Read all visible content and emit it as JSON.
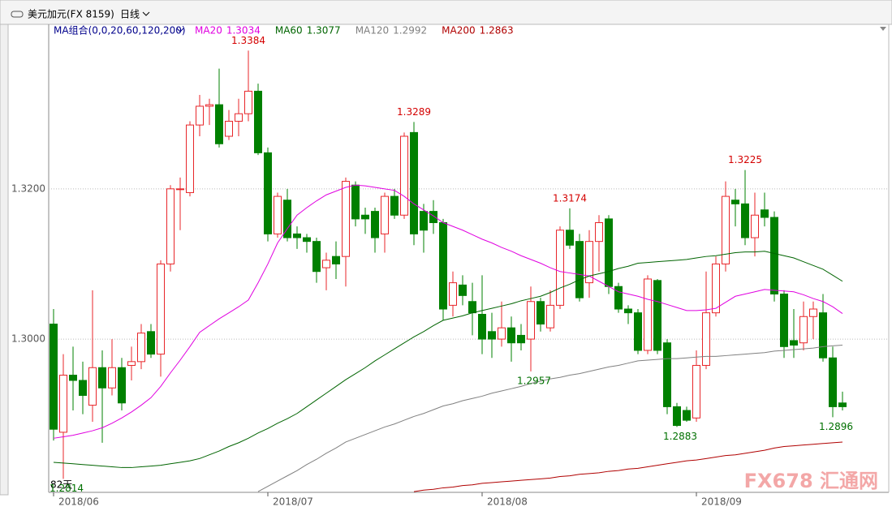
{
  "chart_data": {
    "type": "candlestick",
    "title": "美元加元(FX 8159)",
    "period": "日线",
    "legend_title": "MA组合(0,0,20,60,120,200)",
    "days_label": "82天",
    "watermark": "FX678 汇通网",
    "categories": [
      "2018/06",
      null,
      null,
      null,
      null,
      null,
      null,
      null,
      null,
      null,
      null,
      null,
      null,
      null,
      null,
      null,
      null,
      null,
      null,
      null,
      null,
      null,
      "2018/07",
      null,
      null,
      null,
      null,
      null,
      null,
      null,
      null,
      null,
      null,
      null,
      null,
      null,
      null,
      null,
      null,
      null,
      null,
      null,
      null,
      null,
      "2018/08",
      null,
      null,
      null,
      null,
      null,
      null,
      null,
      null,
      null,
      null,
      null,
      null,
      null,
      null,
      null,
      null,
      null,
      null,
      null,
      null,
      null,
      "2018/09",
      null,
      null,
      null,
      null,
      null,
      null,
      null,
      null,
      null,
      null,
      null,
      null,
      null,
      null,
      null
    ],
    "open": [
      1.302,
      1.2876,
      1.2952,
      1.2945,
      1.2912,
      1.2962,
      1.2935,
      1.2962,
      1.2965,
      1.297,
      1.301,
      1.298,
      1.31,
      1.32,
      1.3195,
      1.3285,
      1.331,
      1.3312,
      1.327,
      1.329,
      1.33,
      1.333,
      1.3248,
      1.314,
      1.3185,
      1.314,
      1.3135,
      1.313,
      1.3095,
      1.311,
      1.311,
      1.3205,
      1.3165,
      1.317,
      1.314,
      1.319,
      1.3165,
      1.3275,
      1.317,
      1.317,
      1.3155,
      1.3045,
      1.3072,
      1.305,
      1.3033,
      1.301,
      1.3,
      1.3015,
      1.3005,
      1.3,
      1.305,
      1.3015,
      1.3045,
      1.3145,
      1.313,
      1.3075,
      1.313,
      1.316,
      1.307,
      1.304,
      1.3035,
      1.2985,
      1.3078,
      1.2995,
      1.291,
      1.2905,
      1.2895,
      1.2965,
      1.3035,
      1.31,
      1.3185,
      1.318,
      1.3135,
      1.3172,
      1.3162,
      1.306,
      1.2998,
      1.2995,
      1.303,
      1.3035,
      1.2975,
      1.2915
    ],
    "high": [
      1.304,
      1.298,
      1.299,
      1.297,
      1.3065,
      1.2985,
      1.3,
      1.2975,
      1.299,
      1.302,
      1.302,
      1.3105,
      1.3205,
      1.3215,
      1.329,
      1.3325,
      1.332,
      1.336,
      1.3305,
      1.332,
      1.3384,
      1.334,
      1.3255,
      1.3195,
      1.32,
      1.315,
      1.314,
      1.3135,
      1.3115,
      1.313,
      1.3215,
      1.321,
      1.3175,
      1.3175,
      1.3195,
      1.32,
      1.3275,
      1.3289,
      1.318,
      1.3185,
      1.316,
      1.309,
      1.3085,
      1.3075,
      1.3085,
      1.3035,
      1.305,
      1.303,
      1.302,
      1.307,
      1.3055,
      1.3065,
      1.315,
      1.3174,
      1.314,
      1.3145,
      1.3165,
      1.3165,
      1.3075,
      1.3045,
      1.304,
      1.3085,
      1.308,
      1.3,
      1.2915,
      1.291,
      1.2985,
      1.309,
      1.311,
      1.321,
      1.32,
      1.3225,
      1.3195,
      1.3195,
      1.317,
      1.3065,
      1.304,
      1.305,
      1.305,
      1.306,
      1.299,
      1.293
    ],
    "low": [
      1.2865,
      1.2814,
      1.2905,
      1.29,
      1.289,
      1.2862,
      1.2925,
      1.2905,
      1.2945,
      1.296,
      1.2975,
      1.295,
      1.309,
      1.3145,
      1.319,
      1.327,
      1.3285,
      1.3255,
      1.3265,
      1.327,
      1.329,
      1.3245,
      1.313,
      1.3135,
      1.313,
      1.312,
      1.3115,
      1.3075,
      1.3065,
      1.308,
      1.307,
      1.315,
      1.314,
      1.3115,
      1.3115,
      1.316,
      1.316,
      1.3125,
      1.3115,
      1.314,
      1.3025,
      1.303,
      1.3045,
      1.3005,
      1.298,
      1.2975,
      1.299,
      1.297,
      1.2985,
      1.2957,
      1.301,
      1.301,
      1.304,
      1.312,
      1.305,
      1.3055,
      1.309,
      1.306,
      1.3035,
      1.302,
      1.298,
      1.298,
      1.298,
      1.29,
      1.2883,
      1.289,
      1.289,
      1.296,
      1.303,
      1.309,
      1.315,
      1.3125,
      1.311,
      1.315,
      1.305,
      1.2975,
      1.2975,
      1.2985,
      1.3,
      1.297,
      1.2896,
      1.2905
    ],
    "close": [
      1.288,
      1.2952,
      1.2945,
      1.2925,
      1.2962,
      1.2935,
      1.2962,
      1.2915,
      1.297,
      1.3008,
      1.298,
      1.31,
      1.32,
      1.32,
      1.3285,
      1.331,
      1.3312,
      1.326,
      1.329,
      1.33,
      1.333,
      1.3248,
      1.314,
      1.319,
      1.3135,
      1.3135,
      1.313,
      1.309,
      1.3105,
      1.31,
      1.321,
      1.316,
      1.316,
      1.3135,
      1.319,
      1.3165,
      1.327,
      1.314,
      1.3145,
      1.3155,
      1.304,
      1.3075,
      1.3058,
      1.3035,
      1.3,
      1.3,
      1.3015,
      1.2995,
      1.2995,
      1.305,
      1.302,
      1.3045,
      1.3145,
      1.3125,
      1.3055,
      1.313,
      1.3155,
      1.307,
      1.304,
      1.3035,
      1.2985,
      1.308,
      1.2985,
      1.291,
      1.2885,
      1.2892,
      1.2965,
      1.3035,
      1.31,
      1.319,
      1.318,
      1.3135,
      1.3165,
      1.3162,
      1.306,
      1.299,
      1.2992,
      1.303,
      1.304,
      1.2975,
      1.291,
      1.291
    ],
    "up_color": "#e8262a",
    "down_color": "#008000",
    "series": [
      {
        "name": "MA20",
        "color": "#e000e0",
        "values": [
          1.2868,
          1.287,
          1.2872,
          1.2875,
          1.2878,
          1.2882,
          1.2888,
          1.2895,
          1.2903,
          1.2912,
          1.2922,
          1.2937,
          1.2955,
          1.2972,
          1.299,
          1.3009,
          1.3018,
          1.3027,
          1.3035,
          1.3043,
          1.3052,
          1.3075,
          1.31,
          1.3128,
          1.3147,
          1.3165,
          1.3175,
          1.3184,
          1.3192,
          1.3197,
          1.3202,
          1.3205,
          1.3204,
          1.3202,
          1.32,
          1.3198,
          1.319,
          1.318,
          1.3172,
          1.3164,
          1.3155,
          1.315,
          1.3145,
          1.3139,
          1.3133,
          1.3128,
          1.3122,
          1.3117,
          1.3111,
          1.3106,
          1.3101,
          1.3095,
          1.309,
          1.3088,
          1.3086,
          1.3084,
          1.3077,
          1.307,
          1.3063,
          1.306,
          1.3057,
          1.3053,
          1.305,
          1.3046,
          1.3042,
          1.3038,
          1.3038,
          1.3039,
          1.3041,
          1.3049,
          1.3057,
          1.306,
          1.3063,
          1.3066,
          1.3065,
          1.3064,
          1.3063,
          1.3059,
          1.3054,
          1.305,
          1.3043,
          1.3034
        ]
      },
      {
        "name": "MA60",
        "color": "#006400",
        "values": [
          1.2836,
          1.2835,
          1.2834,
          1.2833,
          1.2832,
          1.2831,
          1.283,
          1.2829,
          1.2829,
          1.283,
          1.2831,
          1.2832,
          1.2834,
          1.2836,
          1.2838,
          1.2841,
          1.2846,
          1.2851,
          1.2857,
          1.2862,
          1.2868,
          1.2875,
          1.2881,
          1.2888,
          1.2894,
          1.2901,
          1.291,
          1.2919,
          1.2928,
          1.2937,
          1.2946,
          1.2954,
          1.2962,
          1.2971,
          1.2979,
          1.2987,
          1.2995,
          1.3003,
          1.301,
          1.3018,
          1.3025,
          1.3028,
          1.3031,
          1.3035,
          1.3038,
          1.3041,
          1.3044,
          1.3047,
          1.3051,
          1.3054,
          1.3057,
          1.3062,
          1.3068,
          1.3073,
          1.3079,
          1.3084,
          1.3087,
          1.309,
          1.3094,
          1.3097,
          1.3101,
          1.3102,
          1.3103,
          1.3104,
          1.3105,
          1.3106,
          1.3108,
          1.311,
          1.3111,
          1.3113,
          1.3115,
          1.3116,
          1.3116,
          1.3117,
          1.3114,
          1.3111,
          1.3108,
          1.3103,
          1.3098,
          1.3093,
          1.3085,
          1.3077
        ]
      },
      {
        "name": "MA120",
        "color": "#808080",
        "values": [
          null,
          null,
          null,
          null,
          null,
          null,
          null,
          null,
          null,
          null,
          null,
          null,
          null,
          null,
          null,
          null,
          null,
          null,
          null,
          null,
          null,
          1.2797,
          1.2804,
          1.2811,
          1.2818,
          1.2825,
          1.2833,
          1.284,
          1.2848,
          1.2855,
          1.2863,
          1.2868,
          1.2873,
          1.2878,
          1.2883,
          1.2887,
          1.2892,
          1.2897,
          1.2901,
          1.2906,
          1.2911,
          1.2914,
          1.2918,
          1.2921,
          1.2924,
          1.2928,
          1.2931,
          1.2934,
          1.2937,
          1.2941,
          1.2944,
          1.2947,
          1.2949,
          1.2952,
          1.2954,
          1.2957,
          1.296,
          1.2963,
          1.2965,
          1.2968,
          1.2971,
          1.2972,
          1.2973,
          1.2974,
          1.2974,
          1.2975,
          1.2976,
          1.2977,
          1.2977,
          1.2978,
          1.2979,
          1.298,
          1.2981,
          1.2982,
          1.2984,
          1.2985,
          1.2986,
          1.2987,
          1.2988,
          1.299,
          1.2991,
          1.2992
        ]
      },
      {
        "name": "MA200",
        "color": "#b00000",
        "values": [
          null,
          null,
          null,
          null,
          null,
          null,
          null,
          null,
          null,
          null,
          null,
          null,
          null,
          null,
          null,
          null,
          null,
          null,
          null,
          null,
          null,
          null,
          null,
          null,
          null,
          null,
          null,
          null,
          null,
          null,
          null,
          null,
          null,
          null,
          null,
          null,
          null,
          1.2797,
          1.2799,
          1.28,
          1.2802,
          1.2803,
          1.2805,
          1.2806,
          1.2808,
          1.2809,
          1.281,
          1.2811,
          1.2812,
          1.2813,
          1.2814,
          1.2815,
          1.2817,
          1.2818,
          1.282,
          1.2821,
          1.2822,
          1.2824,
          1.2825,
          1.2827,
          1.2828,
          1.283,
          1.2832,
          1.2834,
          1.2836,
          1.2838,
          1.2839,
          1.2841,
          1.2843,
          1.2845,
          1.2846,
          1.2848,
          1.285,
          1.2852,
          1.2855,
          1.2857,
          1.2858,
          1.2859,
          1.286,
          1.2861,
          1.2862,
          1.2863
        ]
      }
    ],
    "ylim": [
      1.2796,
      1.3419
    ],
    "yticks": [
      {
        "value": 1.3,
        "label": "1.3000"
      },
      {
        "value": 1.32,
        "label": "1.3200"
      }
    ],
    "grid": true,
    "annotations": [
      {
        "value": 1.3384,
        "label": "1.3384"
      },
      {
        "value": 1.3289,
        "label": "1.3289"
      },
      {
        "value": 1.3174,
        "label": "1.3174"
      },
      {
        "value": 1.3225,
        "label": "1.3225"
      },
      {
        "value": 1.2957,
        "label": "1.2957"
      },
      {
        "value": 1.2883,
        "label": "1.2883"
      },
      {
        "value": 1.2896,
        "label": "1.2896"
      },
      {
        "value": 1.2814,
        "label": "1.2814"
      }
    ]
  }
}
